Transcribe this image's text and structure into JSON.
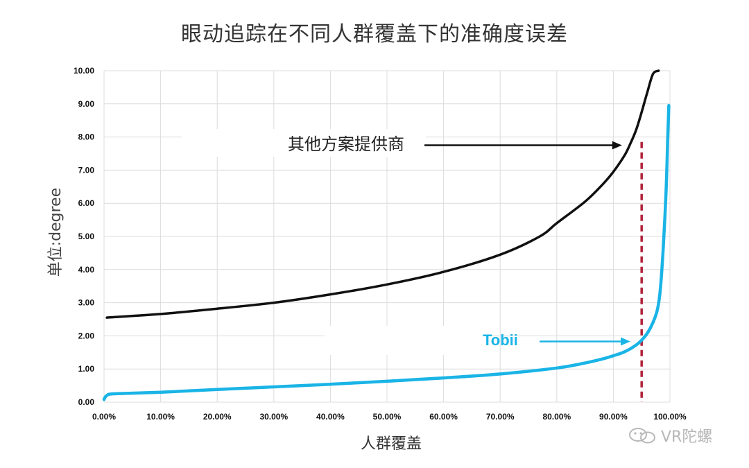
{
  "title": "眼动追踪在不同人群覆盖下的准确度误差",
  "watermark": "VR陀螺",
  "colors": {
    "other": "#111111",
    "tobii": "#1ab4e6",
    "marker": "#b2223a",
    "grid": "#dcdcdc"
  },
  "chart_data": {
    "type": "line",
    "xlabel": "人群覆盖",
    "ylabel": "单位:degree",
    "xlim": [
      0,
      100
    ],
    "ylim": [
      0,
      10
    ],
    "x_ticks": [
      "0.00%",
      "10.00%",
      "20.00%",
      "30.00%",
      "40.00%",
      "50.00%",
      "60.00%",
      "70.00%",
      "80.00%",
      "90.00%",
      "100.00%"
    ],
    "y_ticks": [
      "0.00",
      "1.00",
      "2.00",
      "3.00",
      "4.00",
      "5.00",
      "6.00",
      "7.00",
      "8.00",
      "9.00",
      "10.00"
    ],
    "grid": true,
    "reference_line": {
      "x": 95,
      "style": "dashed"
    },
    "series": [
      {
        "name": "其他方案提供商",
        "x": [
          0.5,
          10,
          20,
          30,
          40,
          50,
          60,
          70,
          77,
          80,
          85,
          88,
          90,
          92,
          93,
          94,
          95,
          96,
          97,
          98
        ],
        "values": [
          2.55,
          2.66,
          2.82,
          3.0,
          3.25,
          3.55,
          3.93,
          4.45,
          5.0,
          5.4,
          6.05,
          6.55,
          6.95,
          7.45,
          7.8,
          8.2,
          8.75,
          9.35,
          9.9,
          10.0
        ]
      },
      {
        "name": "Tobii",
        "x": [
          0.0,
          0.2,
          0.5,
          1.0,
          3.0,
          10,
          20,
          30,
          40,
          50,
          60,
          70,
          80,
          85,
          88,
          90,
          92,
          94,
          95,
          96,
          97,
          97.8,
          98.3,
          98.8,
          99.3,
          99.6,
          99.8
        ],
        "values": [
          0.08,
          0.15,
          0.2,
          0.24,
          0.26,
          0.3,
          0.38,
          0.46,
          0.54,
          0.63,
          0.73,
          0.85,
          1.03,
          1.18,
          1.3,
          1.4,
          1.52,
          1.72,
          1.87,
          2.08,
          2.4,
          2.8,
          3.4,
          4.6,
          6.3,
          7.9,
          8.95
        ]
      }
    ],
    "annotations": [
      {
        "text": "其他方案提供商",
        "x": 92.5,
        "y": 7.75
      },
      {
        "text": "Tobii",
        "x": 94,
        "y": 1.83
      }
    ]
  }
}
